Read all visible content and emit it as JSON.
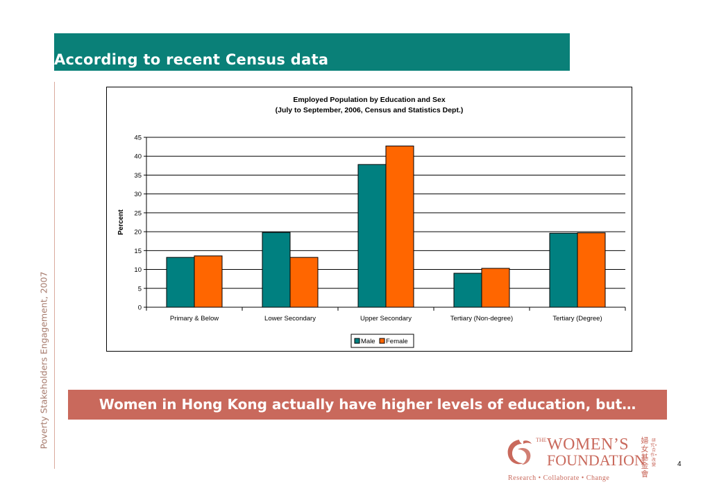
{
  "slide": {
    "title": "According to recent Census data",
    "side_text": "Poverty Stakeholders Engagement, 2007",
    "callout": "Women in Hong Kong actually have higher levels of education, but…",
    "page_number": "4",
    "logo": {
      "the": "THE",
      "line1": "WOMEN’S",
      "line2": "FOUNDATION",
      "chinese": "婦女基金會",
      "chinese_small": "研究•合作•改變",
      "tagline": "Research • Collaborate • Change"
    },
    "colors": {
      "banner": "#0a8078",
      "callout": "#c9695c",
      "logo": "#c9695c"
    }
  },
  "chart_data": {
    "type": "bar",
    "title": "Employed Population by Education and Sex",
    "subtitle": "(July to September, 2006, Census and Statistics Dept.)",
    "ylabel": "Percent",
    "xlabel": "",
    "ylim": [
      0,
      45
    ],
    "yticks": [
      0,
      5,
      10,
      15,
      20,
      25,
      30,
      35,
      40,
      45
    ],
    "categories": [
      "Primary & Below",
      "Lower Secondary",
      "Upper Secondary",
      "Tertiary (Non-degree)",
      "Tertiary (Degree)"
    ],
    "series": [
      {
        "name": "Male",
        "color": "#008080",
        "values": [
          13.2,
          19.8,
          37.8,
          9.0,
          19.6
        ]
      },
      {
        "name": "Female",
        "color": "#ff6600",
        "values": [
          13.6,
          13.2,
          42.7,
          10.3,
          19.7
        ]
      }
    ],
    "grid": true,
    "legend": "bottom"
  }
}
